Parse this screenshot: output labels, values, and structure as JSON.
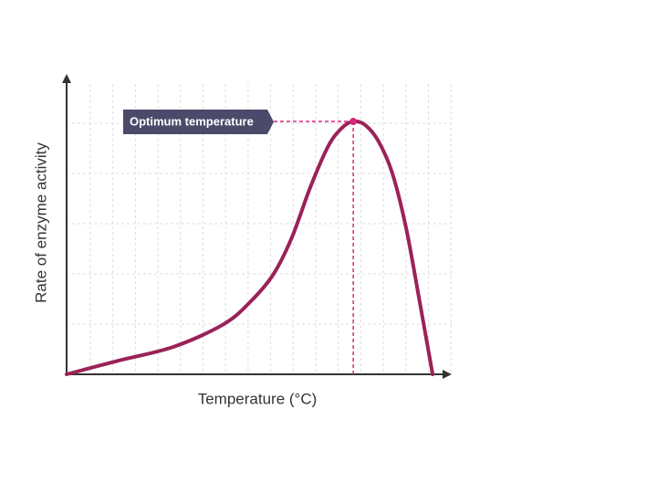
{
  "chart_data": {
    "type": "line",
    "xlabel": "Temperature (°C)",
    "ylabel": "Rate of enzyme activity",
    "annotation": "Optimum temperature",
    "x": [
      0,
      13.6,
      27.9,
      41,
      48.1,
      54,
      58.8,
      63.6,
      68.3,
      71.9,
      74.8,
      77.9,
      81.4,
      85,
      88.6,
      92.1,
      95.5
    ],
    "values": [
      0,
      4.6,
      9.2,
      16.8,
      24.5,
      33.6,
      45.9,
      62.7,
      76.5,
      82.6,
      84.7,
      83.5,
      78,
      67.3,
      48.9,
      24.5,
      0
    ],
    "color": "#9b2257",
    "xlim": [
      0,
      100
    ],
    "ylim": [
      0,
      100
    ],
    "grid": true
  }
}
